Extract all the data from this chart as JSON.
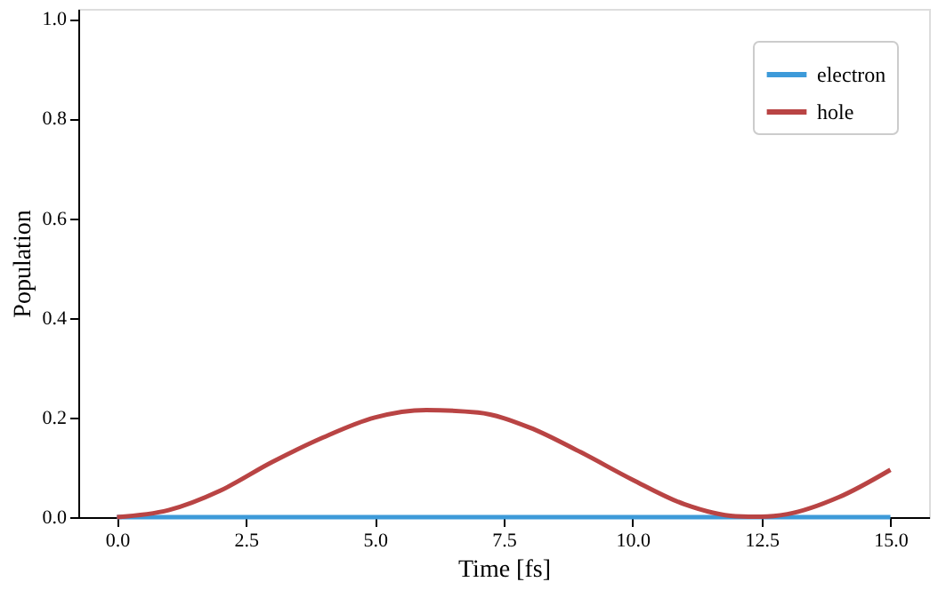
{
  "chart_data": {
    "type": "line",
    "xlabel": "Time [fs]",
    "ylabel": "Population",
    "x": [
      0,
      1,
      2,
      3,
      4,
      5,
      6,
      7,
      8,
      9,
      10,
      11,
      12,
      12.5,
      13,
      14,
      15
    ],
    "series": [
      {
        "name": "electron",
        "color": "#3d9ad9",
        "values": [
          0,
          0,
          0,
          0,
          0,
          0,
          0,
          0,
          0,
          0,
          0,
          0,
          0,
          0,
          0,
          0,
          0
        ]
      },
      {
        "name": "hole",
        "color": "#b94444",
        "values": [
          0,
          0.014,
          0.053,
          0.11,
          0.16,
          0.2,
          0.215,
          0.21,
          0.18,
          0.13,
          0.075,
          0.026,
          0.002,
          0.001,
          0.006,
          0.04,
          0.095
        ]
      }
    ],
    "xlim": [
      -0.75,
      15.75
    ],
    "xticks": [
      {
        "value": 0,
        "label": "0.0"
      },
      {
        "value": 2.5,
        "label": "2.5"
      },
      {
        "value": 5,
        "label": "5.0"
      },
      {
        "value": 7.5,
        "label": "7.5"
      },
      {
        "value": 10,
        "label": "10.0"
      },
      {
        "value": 12.5,
        "label": "12.5"
      },
      {
        "value": 15,
        "label": "15.0"
      }
    ],
    "ylim": [
      0,
      1.02
    ],
    "yticks": [
      {
        "value": 0,
        "label": "0.0"
      },
      {
        "value": 0.2,
        "label": "0.2"
      },
      {
        "value": 0.4,
        "label": "0.4"
      },
      {
        "value": 0.6,
        "label": "0.6"
      },
      {
        "value": 0.8,
        "label": "0.8"
      },
      {
        "value": 1,
        "label": "1.0"
      }
    ],
    "grid": false,
    "legend": "top right",
    "line_style": "solid",
    "marker": "none"
  }
}
